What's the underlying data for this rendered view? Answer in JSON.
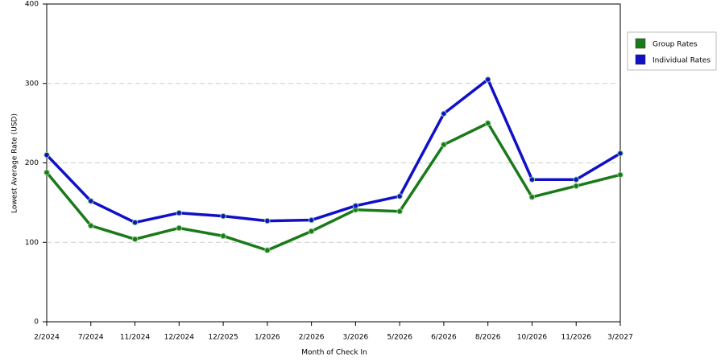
{
  "chart_data": {
    "type": "line",
    "x_label": "Month of Check In",
    "y_label": "Lowest Average Rate (USD)",
    "categories": [
      "2/2024",
      "7/2024",
      "11/2024",
      "12/2024",
      "12/2025",
      "1/2026",
      "2/2026",
      "3/2026",
      "5/2026",
      "6/2026",
      "8/2026",
      "10/2026",
      "11/2026",
      "3/2027"
    ],
    "series": [
      {
        "name": "Group Rates",
        "color": "#1a7a1a",
        "values": [
          188,
          121,
          104,
          118,
          108,
          90,
          114,
          141,
          139,
          223,
          250,
          157,
          171,
          185
        ]
      },
      {
        "name": "Individual Rates",
        "color": "#1010c8",
        "values": [
          210,
          152,
          125,
          137,
          133,
          127,
          128,
          146,
          158,
          262,
          305,
          179,
          179,
          212
        ]
      }
    ],
    "ylim": [
      0,
      400
    ],
    "yticks": [
      0,
      100,
      200,
      300,
      400
    ],
    "grid": true,
    "legend": "right"
  }
}
